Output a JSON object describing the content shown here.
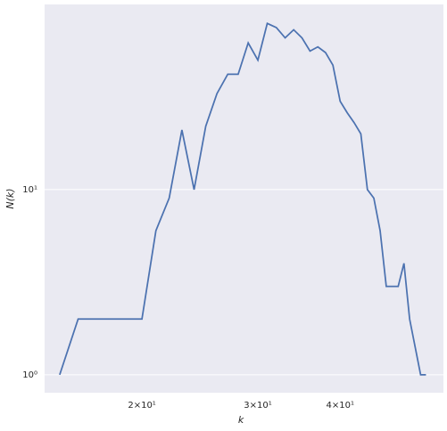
{
  "chart_data": {
    "type": "line",
    "x_label": "k",
    "y_label": "N(k)",
    "x": [
      15,
      16,
      17,
      18,
      19,
      20,
      21,
      22,
      23,
      24,
      25,
      26,
      27,
      28,
      29,
      30,
      31,
      32,
      33,
      34,
      35,
      36,
      37,
      38,
      39,
      40,
      41,
      42,
      43,
      44,
      45,
      46,
      47,
      48,
      49,
      50,
      51,
      53,
      54
    ],
    "series": [
      {
        "color": "#4c72b0",
        "values": [
          1,
          2,
          2,
          2,
          2,
          2,
          6,
          9,
          21,
          10,
          22,
          33,
          42,
          42,
          62,
          50,
          79,
          75,
          66,
          73,
          66,
          56,
          59,
          55,
          47,
          30,
          26,
          23,
          20,
          10,
          9,
          6,
          3,
          3,
          3,
          4,
          2,
          1,
          1
        ]
      }
    ],
    "xlim": [
      14.23,
      57.4
    ],
    "ylim": [
      0.8,
      100
    ],
    "xticks": [
      {
        "value": 20,
        "label": "2×10¹"
      },
      {
        "value": 30,
        "label": "3×10¹"
      },
      {
        "value": 40,
        "label": "4×10¹"
      }
    ],
    "yticks": [
      {
        "value": 1,
        "label": "10⁰"
      },
      {
        "value": 10,
        "label": "10¹"
      }
    ],
    "xscale": "log",
    "yscale": "log",
    "grid": "y",
    "background": "#eaeaf2"
  }
}
